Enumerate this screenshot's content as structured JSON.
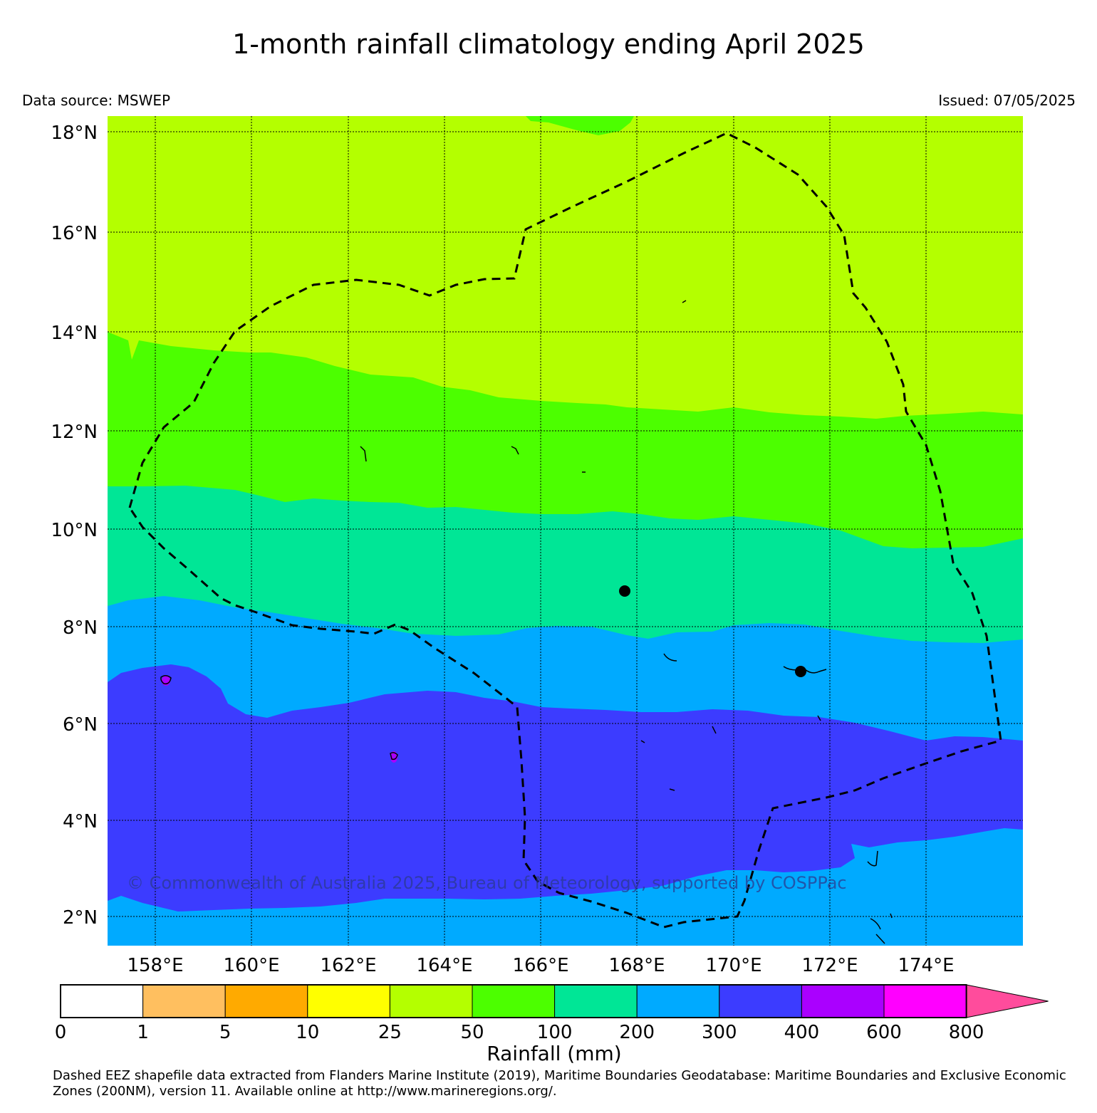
{
  "title": "1-month rainfall climatology ending April 2025",
  "data_source": "Data source: MSWEP",
  "issued": "Issued: 07/05/2025",
  "copyright": "© Commonwealth of Australia 2025, Bureau of Meteorology, supported by COSPPac",
  "footer": "Dashed EEZ shapefile data extracted from Flanders Marine Institute (2019), Maritime Boundaries Geodatabase: Maritime Boundaries and Exclusive Economic Zones (200NM), version 11. Available online at http://www.marineregions.org/.",
  "map": {
    "lon_ticks": [
      "158°E",
      "160°E",
      "162°E",
      "164°E",
      "166°E",
      "168°E",
      "170°E",
      "172°E",
      "174°E"
    ],
    "lat_ticks": [
      "18°N",
      "16°N",
      "14°N",
      "12°N",
      "10°N",
      "8°N",
      "6°N",
      "4°N",
      "2°N"
    ],
    "grid": true,
    "grid_style": "dotted",
    "eez_boundary_style": "dashed"
  },
  "colorbar": {
    "title": "Rainfall (mm)",
    "labels": [
      "0",
      "1",
      "5",
      "10",
      "25",
      "50",
      "100",
      "200",
      "300",
      "400",
      "600",
      "800"
    ],
    "colors": [
      "#ffffff",
      "#ffbf5f",
      "#ffaa00",
      "#ffff00",
      "#b4ff00",
      "#4cff00",
      "#00e696",
      "#00aaff",
      "#3c3cff",
      "#aa00ff",
      "#ff00ff"
    ],
    "extend_color": "#ff4c9c"
  },
  "colors": {
    "band_25_50": "#b4ff00",
    "band_50_100": "#4cff00",
    "band_100_200": "#00e696",
    "band_200_300": "#00aaff",
    "band_300_400": "#3c3cff",
    "band_400_600": "#aa00ff"
  }
}
